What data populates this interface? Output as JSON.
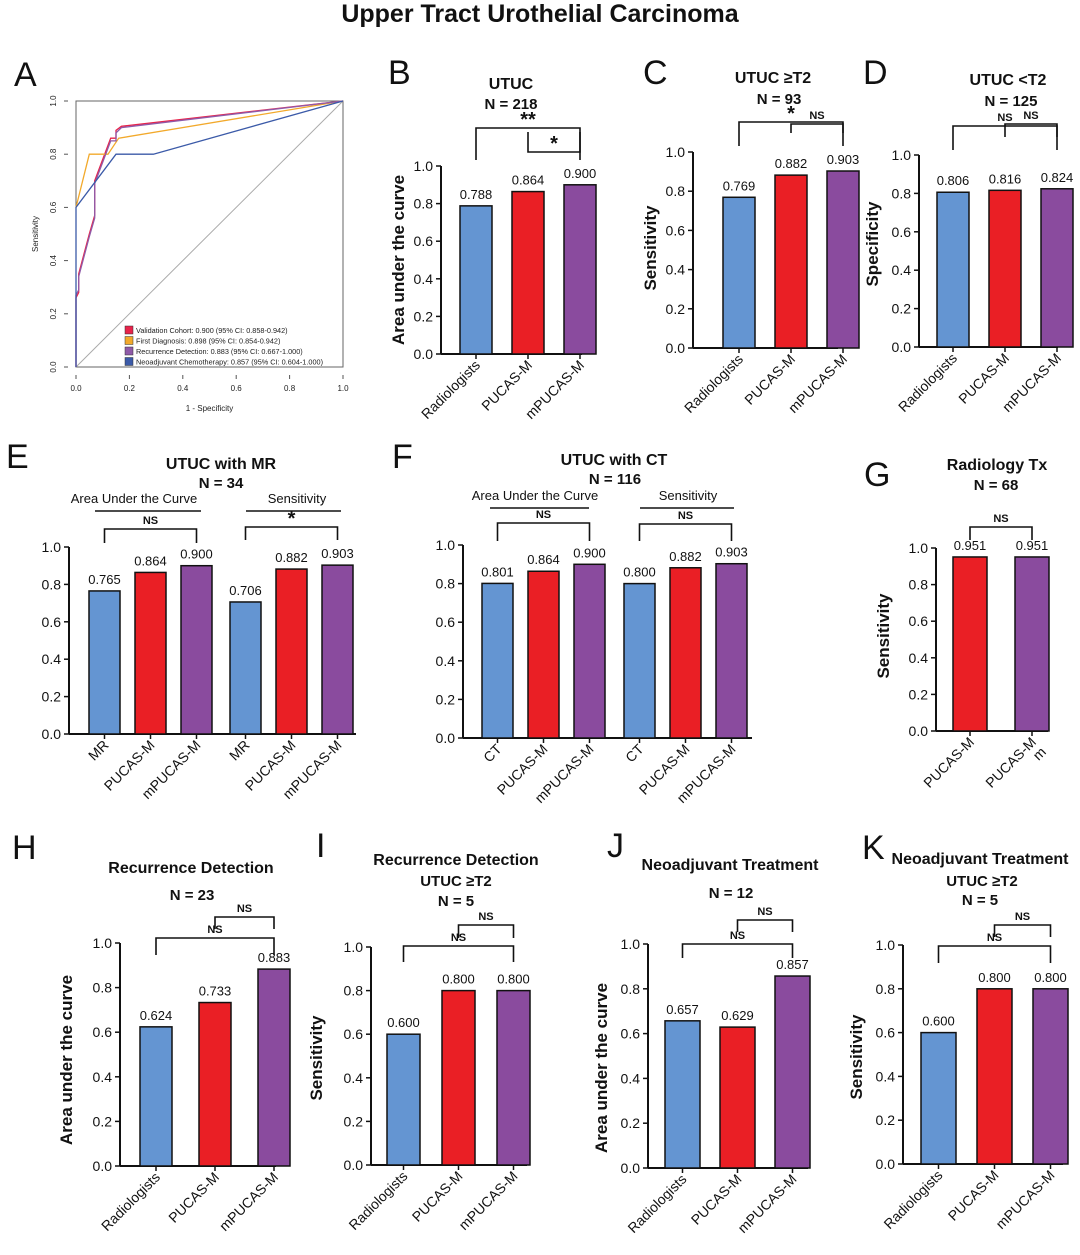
{
  "title": "Upper Tract Urothelial Carcinoma",
  "colors": {
    "blue": "#6495d2",
    "red": "#ea1f25",
    "purple": "#8a4b9e",
    "roc_red": "#e8234a",
    "roc_orange": "#f2a92b",
    "roc_purple": "#8f5aa8",
    "roc_navy": "#3b5aa8"
  },
  "chart_data": [
    {
      "id": "A",
      "panel_letter": "A",
      "type": "line",
      "xlabel": "1 - Specificity",
      "ylabel": "Sensitivity",
      "xlim": [
        0,
        1
      ],
      "ylim": [
        0,
        1
      ],
      "ticks": [
        "0.0",
        "0.2",
        "0.4",
        "0.6",
        "0.8",
        "1.0"
      ],
      "legend_position": "bottom-right",
      "series": [
        {
          "name": "Validation Cohort: 0.900 (95% CI: 0.858-0.942)",
          "color": "#e8234a",
          "x": [
            0,
            0,
            0.01,
            0.01,
            0.05,
            0.07,
            0.07,
            0.13,
            0.15,
            0.15,
            0.17,
            1.0
          ],
          "y": [
            0,
            0.26,
            0.28,
            0.35,
            0.5,
            0.57,
            0.7,
            0.86,
            0.86,
            0.89,
            0.905,
            1.0
          ]
        },
        {
          "name": "First Diagnosis: 0.898 (95% CI: 0.854-0.942)",
          "color": "#f2a92b",
          "x": [
            0,
            0.05,
            0.12,
            0.16,
            1.0
          ],
          "y": [
            0.6,
            0.8,
            0.8,
            0.86,
            1.0
          ]
        },
        {
          "name": "Recurrence Detection: 0.883 (95% CI: 0.667-1.000)",
          "color": "#8f5aa8",
          "x": [
            0,
            0,
            0.01,
            0.01,
            0.05,
            0.07,
            0.07,
            0.13,
            0.15,
            0.15,
            0.17,
            1.0
          ],
          "y": [
            0,
            0.27,
            0.29,
            0.34,
            0.49,
            0.56,
            0.69,
            0.85,
            0.85,
            0.88,
            0.9,
            1.0
          ]
        },
        {
          "name": "Neoadjuvant Chemotherapy: 0.857 (95% CI: 0.604-1.000)",
          "color": "#3b5aa8",
          "x": [
            0,
            0,
            0.15,
            0.29,
            1.0
          ],
          "y": [
            0,
            0.6,
            0.8,
            0.8,
            1.0
          ]
        }
      ]
    },
    {
      "id": "B",
      "panel_letter": "B",
      "type": "bar",
      "title_lines": [
        "UTUC",
        "N = 218"
      ],
      "ylabel": "Area under the curve",
      "ylim": [
        0,
        1
      ],
      "ticks": [
        "0.0",
        "0.2",
        "0.4",
        "0.6",
        "0.8",
        "1.0"
      ],
      "categories": [
        "Radiologists",
        "PUCAS-M",
        "mPUCAS-M"
      ],
      "values": [
        0.788,
        0.864,
        0.9
      ],
      "value_labels": [
        "0.788",
        "0.864",
        "0.900"
      ],
      "bar_colors": [
        "blue",
        "red",
        "purple"
      ],
      "brackets": [
        {
          "from": 1,
          "to": 2,
          "label": "*"
        },
        {
          "from": 0,
          "to": 2,
          "label": "**"
        }
      ]
    },
    {
      "id": "C",
      "panel_letter": "C",
      "type": "bar",
      "title_lines": [
        "UTUC ≥T2",
        "N = 93"
      ],
      "ylabel": "Sensitivity",
      "ylim": [
        0,
        1
      ],
      "ticks": [
        "0.0",
        "0.2",
        "0.4",
        "0.6",
        "0.8",
        "1.0"
      ],
      "categories": [
        "Radiologists",
        "PUCAS-M",
        "mPUCAS-M"
      ],
      "values": [
        0.769,
        0.882,
        0.903
      ],
      "value_labels": [
        "0.769",
        "0.882",
        "0.903"
      ],
      "bar_colors": [
        "blue",
        "red",
        "purple"
      ],
      "brackets": [
        {
          "from": 1,
          "to": 2,
          "label": "NS"
        },
        {
          "from": 0,
          "to": 2,
          "label": "*"
        }
      ]
    },
    {
      "id": "D",
      "panel_letter": "D",
      "type": "bar",
      "title_lines": [
        "UTUC <T2",
        "N = 125"
      ],
      "ylabel": "Specificity",
      "ylim": [
        0,
        1
      ],
      "ticks": [
        "0.0",
        "0.2",
        "0.4",
        "0.6",
        "0.8",
        "1.0"
      ],
      "categories": [
        "Radiologists",
        "PUCAS-M",
        "mPUCAS-M"
      ],
      "values": [
        0.806,
        0.816,
        0.824
      ],
      "value_labels": [
        "0.806",
        "0.816",
        "0.824"
      ],
      "bar_colors": [
        "blue",
        "red",
        "purple"
      ],
      "brackets": [
        {
          "from": 1,
          "to": 2,
          "label": "NS"
        },
        {
          "from": 0,
          "to": 2,
          "label": "NS"
        }
      ]
    },
    {
      "id": "E",
      "panel_letter": "E",
      "type": "bar",
      "title_lines": [
        "UTUC with MR",
        "N = 34"
      ],
      "ylabel": "",
      "ylim": [
        0,
        1
      ],
      "ticks": [
        "0.0",
        "0.2",
        "0.4",
        "0.6",
        "0.8",
        "1.0"
      ],
      "categories": [
        "MR",
        "PUCAS-M",
        "mPUCAS-M",
        "MR",
        "PUCAS-M",
        "mPUCAS-M"
      ],
      "values": [
        0.765,
        0.864,
        0.9,
        0.706,
        0.882,
        0.903
      ],
      "value_labels": [
        "0.765",
        "0.864",
        "0.900",
        "0.706",
        "0.882",
        "0.903"
      ],
      "bar_colors": [
        "blue",
        "red",
        "purple",
        "blue",
        "red",
        "purple"
      ],
      "groups": [
        {
          "label": "Area Under the Curve",
          "from": 0,
          "to": 2
        },
        {
          "label": "Sensitivity",
          "from": 3,
          "to": 5
        }
      ],
      "brackets": [
        {
          "from": 0,
          "to": 2,
          "label": "NS"
        },
        {
          "from": 3,
          "to": 5,
          "label": "*"
        }
      ]
    },
    {
      "id": "F",
      "panel_letter": "F",
      "type": "bar",
      "title_lines": [
        "UTUC with CT",
        "N = 116"
      ],
      "ylabel": "",
      "ylim": [
        0,
        1
      ],
      "ticks": [
        "0.0",
        "0.2",
        "0.4",
        "0.6",
        "0.8",
        "1.0"
      ],
      "categories": [
        "CT",
        "PUCAS-M",
        "mPUCAS-M",
        "CT",
        "PUCAS-M",
        "mPUCAS-M"
      ],
      "values": [
        0.801,
        0.864,
        0.9,
        0.8,
        0.882,
        0.903
      ],
      "value_labels": [
        "0.801",
        "0.864",
        "0.900",
        "0.800",
        "0.882",
        "0.903"
      ],
      "bar_colors": [
        "blue",
        "red",
        "purple",
        "blue",
        "red",
        "purple"
      ],
      "groups": [
        {
          "label": "Area Under the Curve",
          "from": 0,
          "to": 2
        },
        {
          "label": "Sensitivity",
          "from": 3,
          "to": 5
        }
      ],
      "brackets": [
        {
          "from": 0,
          "to": 2,
          "label": "NS"
        },
        {
          "from": 3,
          "to": 5,
          "label": "NS"
        }
      ]
    },
    {
      "id": "G",
      "panel_letter": "G",
      "type": "bar",
      "title_lines": [
        "Radiology Tx",
        "N = 68"
      ],
      "ylabel": "Sensitivity",
      "ylim": [
        0,
        1
      ],
      "ticks": [
        "0.0",
        "0.2",
        "0.4",
        "0.6",
        "0.8",
        "1.0"
      ],
      "categories": [
        "PUCAS-M",
        "PUCAS-M\nm"
      ],
      "values": [
        0.951,
        0.951
      ],
      "value_labels": [
        "0.951",
        "0.951"
      ],
      "bar_colors": [
        "red",
        "purple"
      ],
      "brackets": [
        {
          "from": 0,
          "to": 1,
          "label": "NS"
        }
      ]
    },
    {
      "id": "H",
      "panel_letter": "H",
      "type": "bar",
      "title_lines": [
        "Recurrence Detection",
        "",
        "N = 23"
      ],
      "ylabel": "Area under the curve",
      "ylim": [
        0,
        1
      ],
      "ticks": [
        "0.0",
        "0.2",
        "0.4",
        "0.6",
        "0.8",
        "1.0"
      ],
      "categories": [
        "Radiologists",
        "PUCAS-M",
        "mPUCAS-M"
      ],
      "values": [
        0.624,
        0.733,
        0.883
      ],
      "value_labels": [
        "0.624",
        "0.733",
        "0.883"
      ],
      "bar_colors": [
        "blue",
        "red",
        "purple"
      ],
      "brackets": [
        {
          "from": 1,
          "to": 2,
          "label": "NS"
        },
        {
          "from": 0,
          "to": 2,
          "label": "NS"
        }
      ]
    },
    {
      "id": "I",
      "panel_letter": "I",
      "type": "bar",
      "title_lines": [
        "Recurrence Detection",
        "UTUC ≥T2",
        "N = 5"
      ],
      "ylabel": "Sensitivity",
      "ylim": [
        0,
        1
      ],
      "ticks": [
        "0.0",
        "0.2",
        "0.4",
        "0.6",
        "0.8",
        "1.0"
      ],
      "categories": [
        "Radiologists",
        "PUCAS-M",
        "mPUCAS-M"
      ],
      "values": [
        0.6,
        0.8,
        0.8
      ],
      "value_labels": [
        "0.600",
        "0.800",
        "0.800"
      ],
      "bar_colors": [
        "blue",
        "red",
        "purple"
      ],
      "brackets": [
        {
          "from": 1,
          "to": 2,
          "label": "NS"
        },
        {
          "from": 0,
          "to": 2,
          "label": "NS"
        }
      ]
    },
    {
      "id": "J",
      "panel_letter": "J",
      "type": "bar",
      "title_lines": [
        "Neoadjuvant Treatment",
        "",
        "N = 12"
      ],
      "ylabel": "Area under the curve",
      "ylim": [
        0,
        1
      ],
      "ticks": [
        "0.0",
        "0.2",
        "0.4",
        "0.6",
        "0.8",
        "1.0"
      ],
      "categories": [
        "Radiologists",
        "PUCAS-M",
        "mPUCAS-M"
      ],
      "values": [
        0.657,
        0.629,
        0.857
      ],
      "value_labels": [
        "0.657",
        "0.629",
        "0.857"
      ],
      "bar_colors": [
        "blue",
        "red",
        "purple"
      ],
      "brackets": [
        {
          "from": 1,
          "to": 2,
          "label": "NS"
        },
        {
          "from": 0,
          "to": 2,
          "label": "NS"
        }
      ]
    },
    {
      "id": "K",
      "panel_letter": "K",
      "type": "bar",
      "title_lines": [
        "Neoadjuvant Treatment",
        "UTUC ≥T2",
        "N = 5"
      ],
      "ylabel": "Sensitivity",
      "ylim": [
        0,
        1
      ],
      "ticks": [
        "0.0",
        "0.2",
        "0.4",
        "0.6",
        "0.8",
        "1.0"
      ],
      "categories": [
        "Radiologists",
        "PUCAS-M",
        "mPUCAS-M"
      ],
      "values": [
        0.6,
        0.8,
        0.8
      ],
      "value_labels": [
        "0.600",
        "0.800",
        "0.800"
      ],
      "bar_colors": [
        "blue",
        "red",
        "purple"
      ],
      "brackets": [
        {
          "from": 1,
          "to": 2,
          "label": "NS"
        },
        {
          "from": 0,
          "to": 2,
          "label": "NS"
        }
      ]
    }
  ]
}
